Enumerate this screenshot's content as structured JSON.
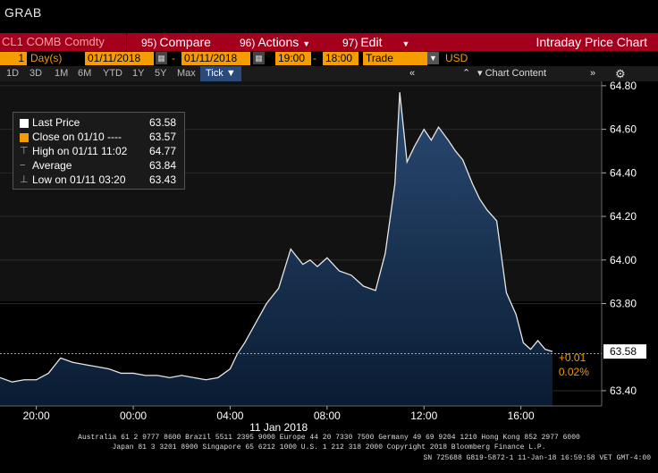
{
  "window": {
    "title": "GRAB"
  },
  "command_bar": {
    "ticker": "CL1 COMB Comdty",
    "compare_num": "95)",
    "compare_label": "Compare",
    "actions_num": "96)",
    "actions_label": "Actions",
    "edit_num": "97)",
    "edit_label": "Edit",
    "chart_title": "Intraday Price Chart"
  },
  "date_bar": {
    "period_count": "1",
    "period_unit": "Day(s)",
    "start_date": "01/11/2018",
    "end_date": "01/11/2018",
    "start_time": "19:00",
    "end_time": "18:00",
    "market_field": "Trade",
    "currency": "USD"
  },
  "range_bar": {
    "ranges": [
      "1D",
      "3D",
      "1M",
      "6M",
      "YTD",
      "1Y",
      "5Y",
      "Max"
    ],
    "tick_label": "Tick",
    "chart_content_label": "Chart Content"
  },
  "legend": {
    "items": [
      {
        "label": "Last Price",
        "value": "63.58",
        "color": "#ffffff"
      },
      {
        "label": "Close on 01/10 ---- ",
        "value": "63.57",
        "color": "#f59c00"
      },
      {
        "label": "High on 01/11 11:02",
        "value": "64.77",
        "color": "#aaaaaa"
      },
      {
        "label": "Average",
        "value": "63.84",
        "color": "#aaaaaa"
      },
      {
        "label": "Low on 01/11 03:20",
        "value": "63.43",
        "color": "#aaaaaa"
      }
    ]
  },
  "colors": {
    "accent": "#f59c00",
    "bar_red": "#a4001e",
    "area": "#0b2a4a"
  },
  "chart_data": {
    "type": "area",
    "title": "",
    "xlabel": "11 Jan 2018",
    "ylabel": "",
    "xticks": [
      "20:00",
      "00:00",
      "04:00",
      "08:00",
      "12:00",
      "16:00"
    ],
    "yticks": [
      "64.80",
      "64.60",
      "64.40",
      "64.20",
      "64.00",
      "63.80",
      "63.40"
    ],
    "ylim": [
      63.33,
      64.82
    ],
    "x_hours": [
      18.5,
      19,
      19.5,
      20,
      20.5,
      21,
      21.5,
      22,
      22.5,
      23,
      23.5,
      24,
      24.5,
      25,
      25.5,
      26,
      26.5,
      27,
      27.5,
      28,
      28.3,
      28.6,
      29,
      29.5,
      30,
      30.5,
      31,
      31.3,
      31.6,
      32,
      32.5,
      33,
      33.5,
      34,
      34.4,
      34.8,
      35,
      35.3,
      35.6,
      36,
      36.3,
      36.6,
      37,
      37.3,
      37.6,
      38,
      38.3,
      38.6,
      39,
      39.4,
      39.8,
      40.1,
      40.4,
      40.7,
      41,
      41.3
    ],
    "y_values": [
      63.46,
      63.44,
      63.45,
      63.45,
      63.48,
      63.55,
      63.53,
      63.52,
      63.51,
      63.5,
      63.48,
      63.48,
      63.47,
      63.47,
      63.46,
      63.47,
      63.46,
      63.45,
      63.46,
      63.5,
      63.57,
      63.62,
      63.7,
      63.8,
      63.87,
      64.05,
      63.98,
      64.0,
      63.97,
      64.01,
      63.95,
      63.93,
      63.88,
      63.86,
      64.03,
      64.35,
      64.77,
      64.45,
      64.52,
      64.6,
      64.55,
      64.61,
      64.55,
      64.5,
      64.46,
      64.35,
      64.28,
      64.23,
      64.18,
      63.85,
      63.75,
      63.62,
      63.59,
      63.63,
      63.59,
      63.58
    ],
    "last_price": 63.58,
    "close_price": 63.57,
    "change_abs": "+0.01",
    "change_pct": "0.02%"
  },
  "footer": {
    "line1": "Australia 61 2 9777 8600 Brazil 5511 2395 9000 Europe 44 20 7330 7500 Germany 49 69 9204 1210 Hong Kong 852 2977 6000",
    "line2": "Japan 81 3 3201 8900        Singapore 65 6212 1000        U.S. 1 212 318 2000        Copyright 2018 Bloomberg Finance L.P.",
    "line3": "SN 725688 G819-5872-1 11-Jan-18 16:59:58 VET  GMT-4:00"
  }
}
